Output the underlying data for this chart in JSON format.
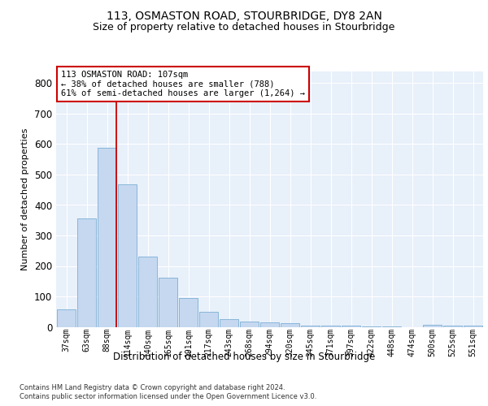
{
  "title1": "113, OSMASTON ROAD, STOURBRIDGE, DY8 2AN",
  "title2": "Size of property relative to detached houses in Stourbridge",
  "xlabel": "Distribution of detached houses by size in Stourbridge",
  "ylabel": "Number of detached properties",
  "categories": [
    "37sqm",
    "63sqm",
    "88sqm",
    "114sqm",
    "140sqm",
    "165sqm",
    "191sqm",
    "217sqm",
    "243sqm",
    "268sqm",
    "294sqm",
    "320sqm",
    "345sqm",
    "371sqm",
    "397sqm",
    "422sqm",
    "448sqm",
    "474sqm",
    "500sqm",
    "525sqm",
    "551sqm"
  ],
  "values": [
    57,
    355,
    588,
    468,
    232,
    162,
    95,
    49,
    25,
    18,
    15,
    12,
    4,
    3,
    3,
    2,
    1,
    0,
    8,
    5,
    4
  ],
  "bar_color": "#c5d8f0",
  "bar_edge_color": "#7bafd4",
  "vline_color": "#cc0000",
  "annotation_line1": "113 OSMASTON ROAD: 107sqm",
  "annotation_line2": "← 38% of detached houses are smaller (788)",
  "annotation_line3": "61% of semi-detached houses are larger (1,264) →",
  "annotation_box_color": "white",
  "annotation_box_edge": "#cc0000",
  "ylim": [
    0,
    840
  ],
  "yticks": [
    0,
    100,
    200,
    300,
    400,
    500,
    600,
    700,
    800
  ],
  "background_color": "#e8f0fa",
  "grid_color": "white",
  "footer1": "Contains HM Land Registry data © Crown copyright and database right 2024.",
  "footer2": "Contains public sector information licensed under the Open Government Licence v3.0."
}
